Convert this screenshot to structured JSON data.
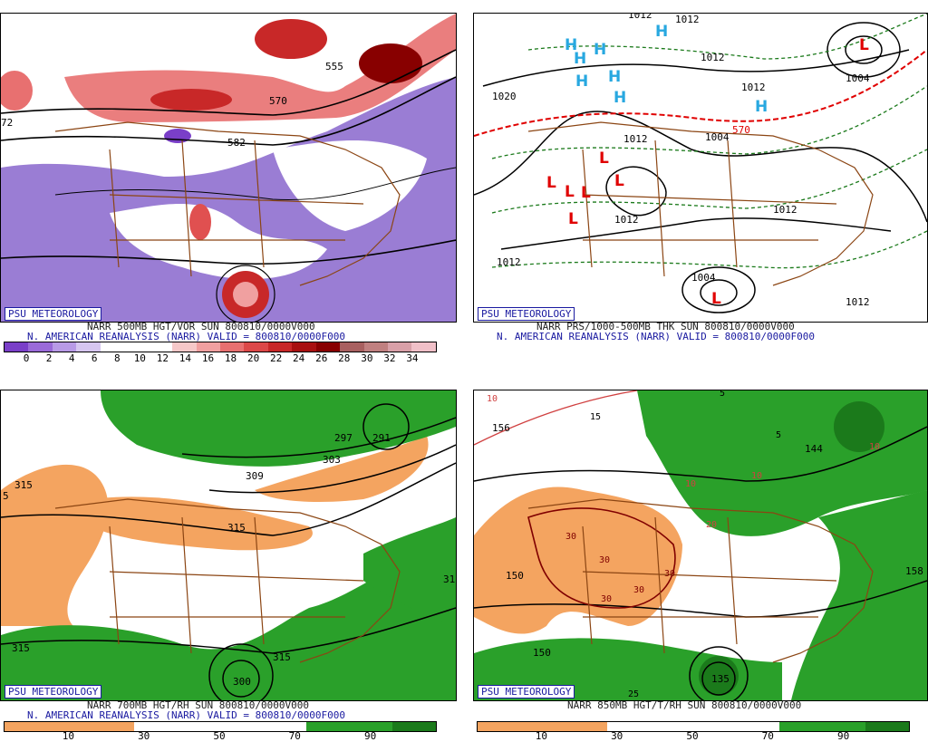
{
  "credit_label": "PSU METEOROLOGY",
  "panels": [
    {
      "id": "top-left",
      "title_line1": "NARR 500MB HGT/VOR SUN 800810/0000V000",
      "title_line2": "N. AMERICAN REANALYSIS (NARR) VALID = 800810/0000F000",
      "colorbar_labels": [
        "0",
        "2",
        "4",
        "6",
        "8",
        "10",
        "12",
        "14",
        "16",
        "18",
        "20",
        "22",
        "24",
        "26",
        "28",
        "30",
        "32",
        "34"
      ],
      "colorbar_colors": [
        "#7a3fc8",
        "#9a6ad8",
        "#b89ae6",
        "#d6c6f0",
        "#ffffff",
        "#ffffff",
        "#ffffff",
        "#f6c8c8",
        "#f0a0a0",
        "#e87070",
        "#dc4848",
        "#c82828",
        "#a81010",
        "#880000",
        "#a86060",
        "#c08080",
        "#d8a0a8",
        "#f0c0c8"
      ],
      "contour_labels": [
        "555",
        "570",
        "582",
        "72"
      ]
    },
    {
      "id": "top-right",
      "title_line1": "NARR PRS/1000-500MB THK SUN 800810/0000V000",
      "title_line2": "N. AMERICAN REANALYSIS (NARR) VALID = 800810/0000F000",
      "contour_labels": [
        "1012",
        "1012",
        "1020",
        "1012",
        "1012",
        "1012",
        "1012",
        "1012",
        "1004",
        "1004",
        "1012",
        "1004",
        "570",
        "1012"
      ],
      "pressure_highs": [
        "H",
        "H",
        "H",
        "H",
        "H",
        "H",
        "H",
        "H"
      ],
      "pressure_lows": [
        "L",
        "L",
        "L",
        "L",
        "L",
        "L",
        "L",
        "L",
        "L"
      ]
    },
    {
      "id": "bottom-left",
      "title_line1": "NARR 700MB HGT/RH SUN 800810/0000V000",
      "title_line2": "N. AMERICAN REANALYSIS (NARR) VALID = 800810/0000F000",
      "colorbar_labels": [
        "10",
        "30",
        "50",
        "70",
        "90"
      ],
      "contour_labels": [
        "315",
        "5",
        "309",
        "303",
        "297",
        "291",
        "315",
        "315",
        "315",
        "300",
        "31"
      ]
    },
    {
      "id": "bottom-right",
      "title_line1": "NARR 850MB HGT/T/RH SUN 800810/0000V000",
      "contour_labels": [
        "156",
        "150",
        "150",
        "156",
        "156",
        "150",
        "144",
        "135",
        "158"
      ],
      "temp_labels": [
        "10",
        "15",
        "5",
        "5",
        "10",
        "10",
        "10",
        "20",
        "30",
        "30",
        "30",
        "30",
        "30",
        "25"
      ],
      "colorbar_labels": [
        "10",
        "30",
        "50",
        "70",
        "90"
      ]
    }
  ],
  "colors": {
    "dry": "#f4a460",
    "moist": "#2aa02a",
    "moist_dark": "#1b7a1b",
    "vort_neg": "#8866cc",
    "vort_pos": "#e05050",
    "borders": "#8b4513",
    "credit": "#1a1aa0"
  }
}
